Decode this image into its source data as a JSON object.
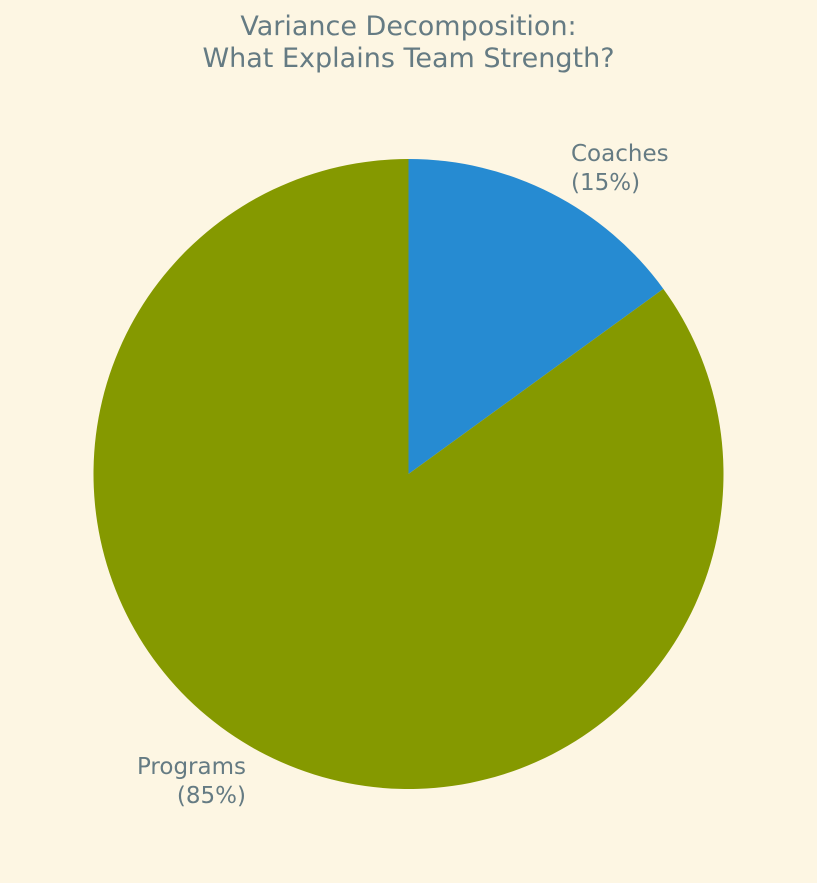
{
  "chart_data": {
    "type": "pie",
    "title_lines": [
      "Variance Decomposition:",
      "What Explains Team Strength?"
    ],
    "slices": [
      {
        "label": "Coaches",
        "value": 15,
        "percent_text": "(15%)",
        "color": "#268bd2"
      },
      {
        "label": "Programs",
        "value": 85,
        "percent_text": "(85%)",
        "color": "#859900"
      }
    ],
    "start_angle": "12 o'clock",
    "direction": "clockwise",
    "legend": "none"
  },
  "colors": {
    "background": "#fdf6e3",
    "text": "#657b83"
  }
}
